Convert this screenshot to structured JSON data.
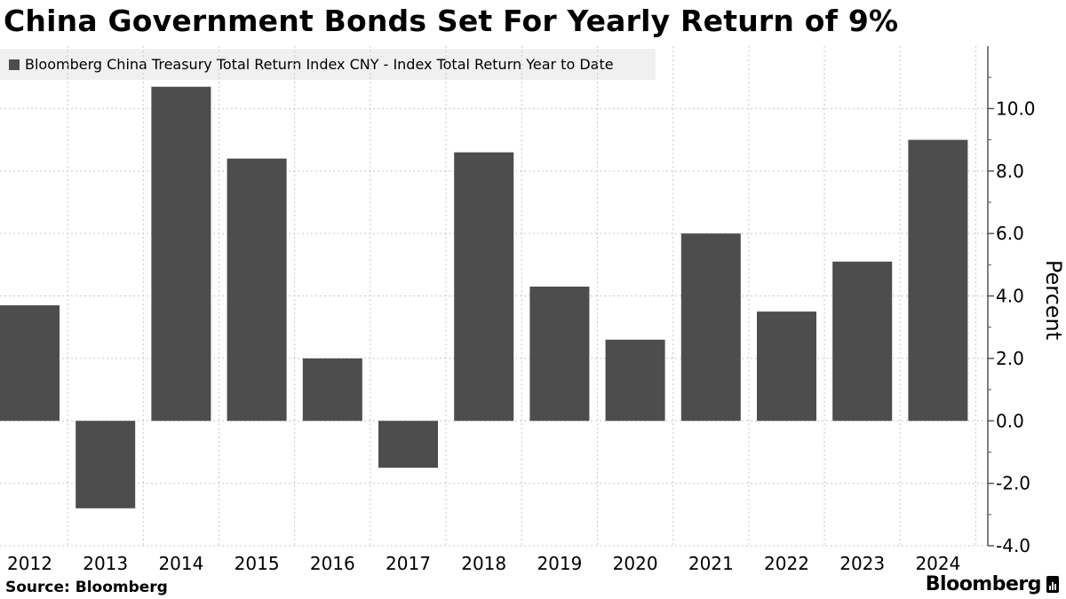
{
  "title": "China Government Bonds Set For Yearly Return of 9%",
  "legend": {
    "label": "Bloomberg China Treasury Total Return Index CNY - Index Total Return Year to Date"
  },
  "footer": {
    "source": "Source: Bloomberg",
    "brand": "Bloomberg"
  },
  "colors": {
    "bar": "#4d4d4d",
    "grid": "#c8c8c8",
    "axis": "#555555",
    "legend_bg": "#f0f0f0"
  },
  "chart_data": {
    "type": "bar",
    "categories": [
      "2012",
      "2013",
      "2014",
      "2015",
      "2016",
      "2017",
      "2018",
      "2019",
      "2020",
      "2021",
      "2022",
      "2023",
      "2024"
    ],
    "series": [
      {
        "name": "Bloomberg China Treasury Total Return Index CNY - Index Total Return Year to Date",
        "values": [
          3.7,
          -2.8,
          10.7,
          8.4,
          2.0,
          -1.5,
          8.6,
          4.3,
          2.6,
          6.0,
          3.5,
          5.1,
          9.0
        ]
      }
    ],
    "ylabel": "Percent",
    "yticks": [
      -4.0,
      -2.0,
      0.0,
      2.0,
      4.0,
      6.0,
      8.0,
      10.0
    ],
    "ylim": [
      -4.0,
      12.0
    ],
    "y_axis_side": "right",
    "grid": true,
    "legend_position": "top-left"
  }
}
